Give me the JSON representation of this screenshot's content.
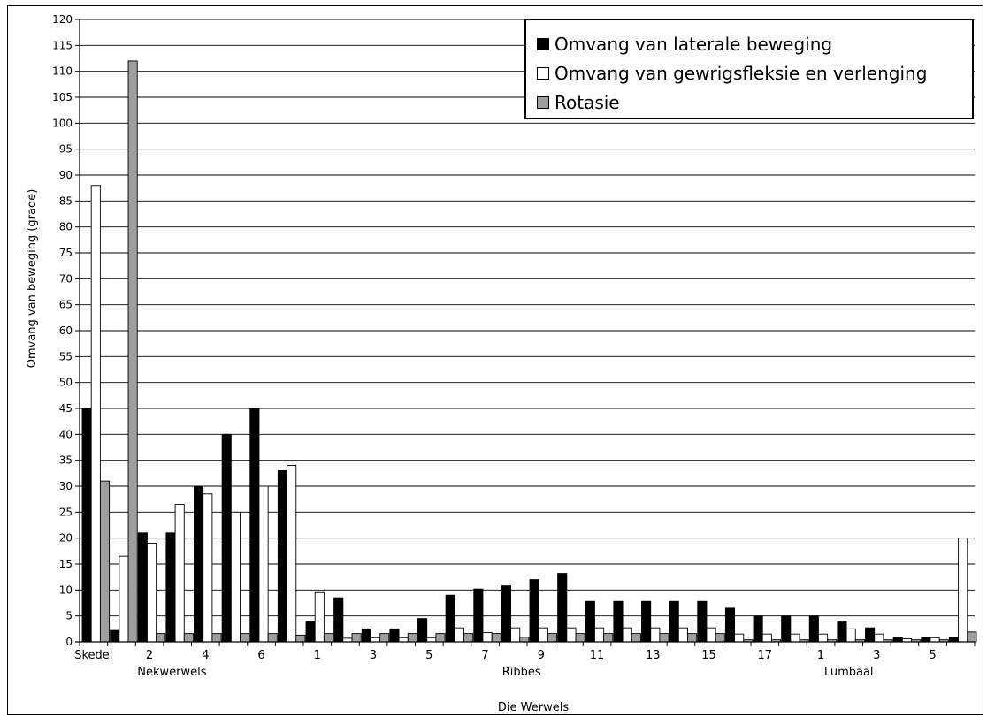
{
  "chart_data": {
    "type": "bar",
    "ylabel": "Omvang van beweging (grade)",
    "xlabel": "Die Werwels",
    "ylim": [
      0,
      120
    ],
    "yticks": [
      0,
      5,
      10,
      15,
      20,
      25,
      30,
      35,
      40,
      45,
      50,
      55,
      60,
      65,
      70,
      75,
      80,
      85,
      90,
      95,
      100,
      105,
      110,
      115,
      120
    ],
    "grid": true,
    "legend_position": "top-right",
    "categories": [
      "Skedel",
      "",
      "2",
      "",
      "4",
      "",
      "6",
      "",
      "1",
      "",
      "3",
      "",
      "5",
      "",
      "7",
      "",
      "9",
      "",
      "11",
      "",
      "13",
      "",
      "15",
      "",
      "17",
      "",
      "1",
      "",
      "3",
      "",
      "5",
      ""
    ],
    "groups": [
      {
        "label": "Nekwerwels"
      },
      {
        "label": "Ribbes"
      },
      {
        "label": "Lumbaal"
      }
    ],
    "series": [
      {
        "name": "Omvang van laterale beweging",
        "color": "#000000",
        "values": [
          45,
          2.2,
          21,
          21,
          30,
          40,
          45,
          33,
          4,
          8.5,
          2.5,
          2.5,
          4.5,
          9,
          10.2,
          10.8,
          12,
          13.2,
          7.8,
          7.8,
          7.8,
          7.8,
          7.8,
          6.5,
          5,
          5,
          5,
          4,
          2.7,
          0.8,
          0.8,
          0.8
        ]
      },
      {
        "name": "Omvang van gewrigsfleksie en verlenging",
        "color": "#ffffff",
        "values": [
          88,
          16.5,
          19,
          26.5,
          28.5,
          25,
          30,
          34,
          9.5,
          0.7,
          0.8,
          0.8,
          0.8,
          2.7,
          1.8,
          2.7,
          2.7,
          2.7,
          2.7,
          2.7,
          2.7,
          2.7,
          2.7,
          1.5,
          1.5,
          1.5,
          1.5,
          2.5,
          1.5,
          0.6,
          0.8,
          20
        ]
      },
      {
        "name": "Rotasie",
        "color": "#9e9e9e",
        "values": [
          31,
          112,
          1.6,
          1.6,
          1.6,
          1.6,
          1.6,
          1.3,
          1.6,
          1.6,
          1.6,
          1.6,
          1.6,
          1.6,
          1.6,
          0.9,
          1.6,
          1.6,
          1.6,
          1.6,
          1.6,
          1.6,
          1.6,
          0.4,
          0.4,
          0.4,
          0.4,
          0.4,
          0.4,
          0.4,
          0.4,
          1.9
        ]
      }
    ]
  }
}
